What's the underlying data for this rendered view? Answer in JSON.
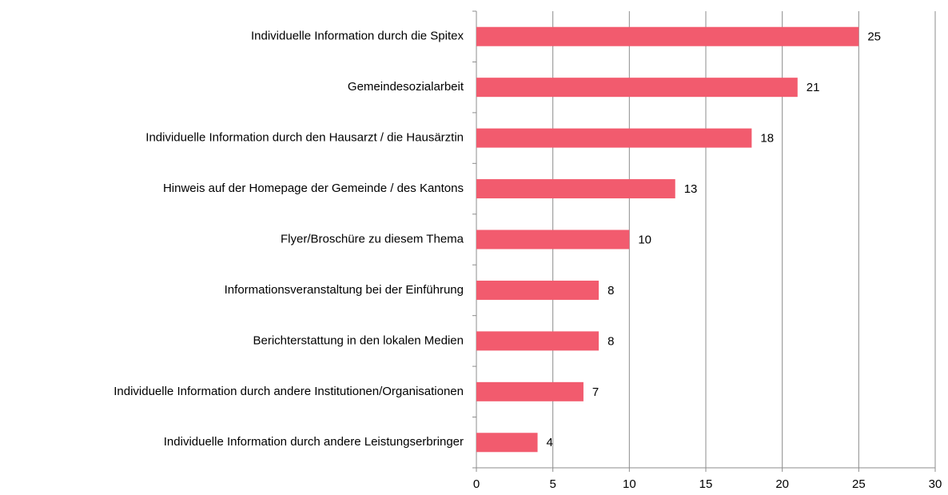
{
  "chart_data": {
    "type": "bar",
    "categories": [
      "Individuelle Information durch die Spitex",
      "Gemeindesozialarbeit",
      "Individuelle Information durch den Hausarzt / die Hausärztin",
      "Hinweis auf der Homepage der Gemeinde / des Kantons",
      "Flyer/Broschüre zu diesem Thema",
      "Informationsveranstaltung bei der Einführung",
      "Berichterstattung in den lokalen Medien",
      "Individuelle Information durch andere Institutionen/Organisationen",
      "Individuelle Information durch andere Leistungserbringer"
    ],
    "values": [
      25,
      21,
      18,
      13,
      10,
      8,
      8,
      7,
      4
    ],
    "color": "#f25b6e",
    "xlim": [
      0,
      30
    ],
    "xticks": [
      0,
      5,
      10,
      15,
      20,
      25,
      30
    ],
    "grid": true
  }
}
